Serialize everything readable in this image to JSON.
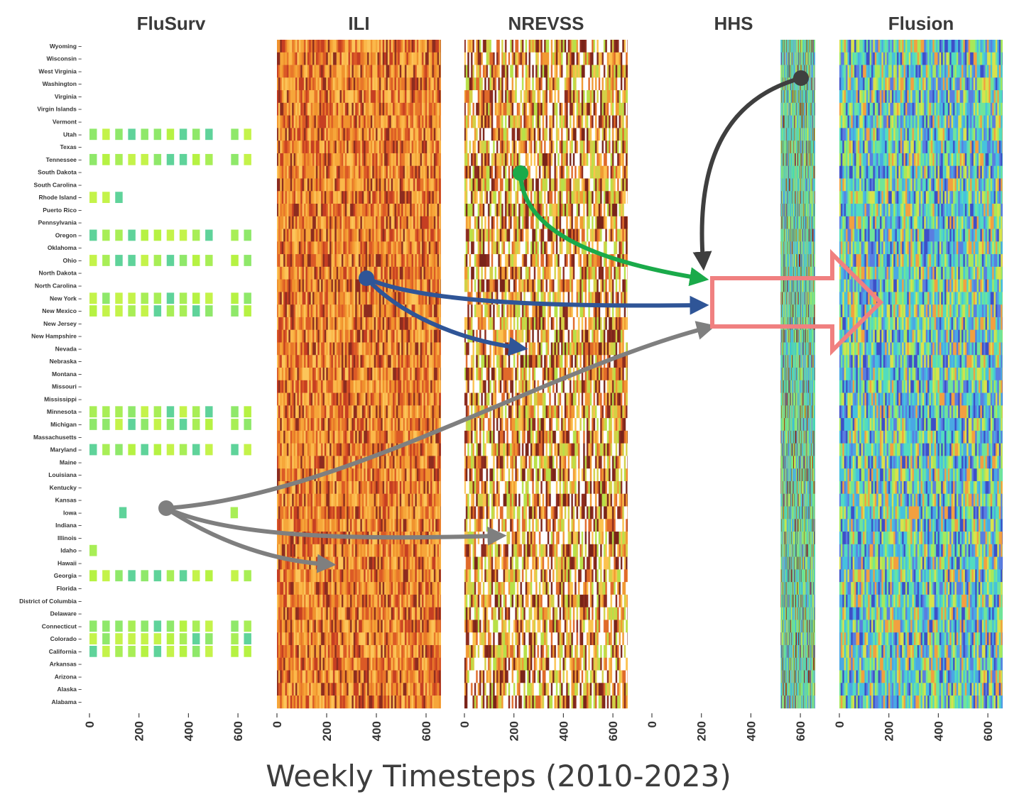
{
  "chart_data": {
    "type": "heatmap",
    "xlabel": "Weekly Timesteps (2010-2023)",
    "x_ticks": [
      0,
      200,
      400,
      600
    ],
    "xlim": [
      0,
      660
    ],
    "states": [
      "Wyoming",
      "Wisconsin",
      "West Virginia",
      "Washington",
      "Virginia",
      "Virgin Islands",
      "Vermont",
      "Utah",
      "Texas",
      "Tennessee",
      "South Dakota",
      "South Carolina",
      "Rhode Island",
      "Puerto Rico",
      "Pennsylvania",
      "Oregon",
      "Oklahoma",
      "Ohio",
      "North Dakota",
      "North Carolina",
      "New York",
      "New Mexico",
      "New Jersey",
      "New Hampshire",
      "Nevada",
      "Nebraska",
      "Montana",
      "Missouri",
      "Mississippi",
      "Minnesota",
      "Michigan",
      "Massachusetts",
      "Maryland",
      "Maine",
      "Louisiana",
      "Kentucky",
      "Kansas",
      "Iowa",
      "Indiana",
      "Illinois",
      "Idaho",
      "Hawaii",
      "Georgia",
      "Florida",
      "District of Columbia",
      "Delaware",
      "Connecticut",
      "Colorado",
      "California",
      "Arkansas",
      "Arizona",
      "Alaska",
      "Alabama"
    ],
    "panels": [
      {
        "name": "FluSurv",
        "palette": "flusurv",
        "states_with_data": [
          "Utah",
          "Tennessee",
          "Rhode Island",
          "Oregon",
          "Ohio",
          "New York",
          "New Mexico",
          "Minnesota",
          "Michigan",
          "Maryland",
          "Iowa",
          "Idaho",
          "Georgia",
          "Connecticut",
          "Colorado",
          "California"
        ]
      },
      {
        "name": "ILI",
        "palette": "ili",
        "coverage": [
          0,
          660
        ]
      },
      {
        "name": "NREVSS",
        "palette": "nrevss",
        "coverage": [
          0,
          660
        ]
      },
      {
        "name": "HHS",
        "palette": "hhs",
        "coverage": [
          520,
          660
        ]
      },
      {
        "name": "Flusion",
        "palette": "flusion",
        "coverage": [
          0,
          660
        ]
      }
    ],
    "palettes": {
      "flusurv": [
        "#b6f243",
        "#c4f34a",
        "#a8ee56",
        "#8fe86a",
        "#5fd39a"
      ],
      "ili": [
        "#f0922e",
        "#f6a63a",
        "#e8772a",
        "#fbb84a",
        "#db5a26",
        "#c63f22",
        "#8d2c1f",
        "#fcc55a"
      ],
      "nrevss": [
        "#f19a33",
        "#e06a2a",
        "#8d2c1f",
        "#7a2419",
        "#fbc24e",
        "#d4d046",
        "#b8e048",
        "#ffffff"
      ],
      "hhs": [
        "#3fd0c0",
        "#4bbcd6",
        "#62e39f",
        "#8fe86a",
        "#5d9ae6",
        "#8d2c1f",
        "#c9e64a"
      ],
      "flusion": [
        "#46c2dd",
        "#4aa8e4",
        "#52dcbf",
        "#6fe499",
        "#5a7ee0",
        "#a8e85a",
        "#d8e24c",
        "#f2a040",
        "#3d4fc8"
      ]
    },
    "arrows": [
      {
        "color": "#3f3f3f",
        "from": "HHS",
        "to": "Flusion"
      },
      {
        "color": "#1aaa4a",
        "from": "NREVSS",
        "to": "Flusion"
      },
      {
        "color": "#2f5597",
        "from": "ILI",
        "to": "NREVSS"
      },
      {
        "color": "#2f5597",
        "from": "ILI",
        "to": "Flusion"
      },
      {
        "color": "#7f7f7f",
        "from": "FluSurv",
        "to": "ILI"
      },
      {
        "color": "#7f7f7f",
        "from": "FluSurv",
        "to": "NREVSS"
      },
      {
        "color": "#7f7f7f",
        "from": "FluSurv",
        "to": "Flusion"
      }
    ]
  }
}
